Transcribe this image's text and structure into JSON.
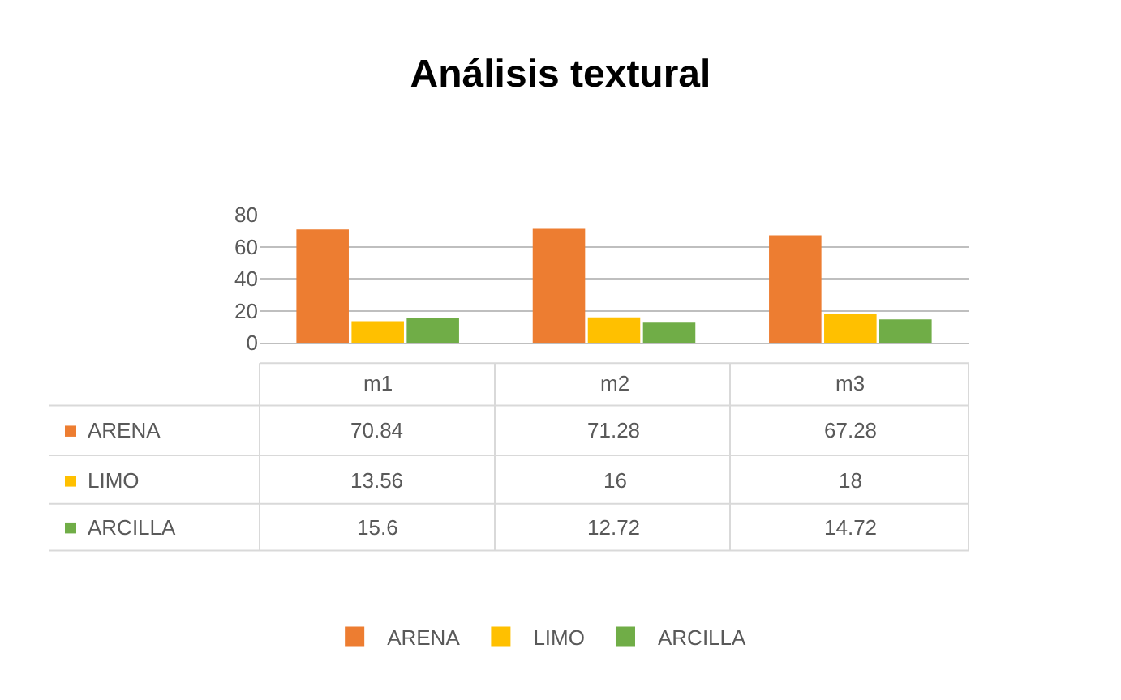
{
  "chart_data": {
    "type": "bar",
    "title": "Análisis textural",
    "categories": [
      "m1",
      "m2",
      "m3"
    ],
    "series": [
      {
        "name": "ARENA",
        "color": "#ed7d31",
        "values": [
          70.84,
          71.28,
          67.28
        ]
      },
      {
        "name": "LIMO",
        "color": "#ffc000",
        "values": [
          13.56,
          16,
          18
        ]
      },
      {
        "name": "ARCILLA",
        "color": "#70ad47",
        "values": [
          15.6,
          12.72,
          14.72
        ]
      }
    ],
    "ylim": [
      0,
      80
    ],
    "yticks": [
      0,
      20,
      40,
      60,
      80
    ],
    "grid": "y",
    "legend": "bottom",
    "data_labels": true
  }
}
